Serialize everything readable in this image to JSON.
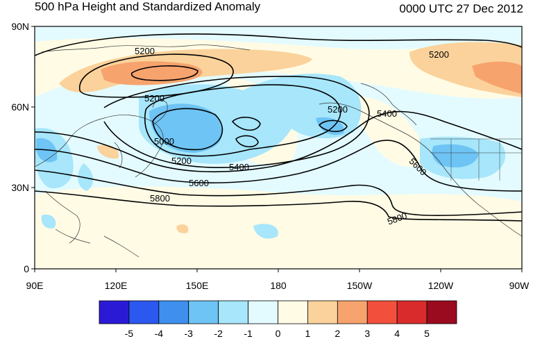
{
  "title": "500 hPa Height and Standardized Anomaly",
  "valid_time": "0000 UTC 27 Dec 2012",
  "lat_labels": [
    "90N",
    "60N",
    "30N",
    "0"
  ],
  "lon_labels": [
    "90E",
    "120E",
    "150E",
    "180",
    "150W",
    "120W",
    "90W"
  ],
  "contour_labels": [
    {
      "text": "5200"
    },
    {
      "text": "5200"
    },
    {
      "text": "5200"
    },
    {
      "text": "5200"
    },
    {
      "text": "5000"
    },
    {
      "text": "5200"
    },
    {
      "text": "5400"
    },
    {
      "text": "5400"
    },
    {
      "text": "5600"
    },
    {
      "text": "5600"
    },
    {
      "text": "5800"
    },
    {
      "text": "5800"
    }
  ],
  "colorbar": {
    "ticks": [
      "-5",
      "-4",
      "-3",
      "-2",
      "-1",
      "0",
      "1",
      "2",
      "3",
      "4",
      "5"
    ],
    "colors": [
      "#2a1ad6",
      "#2b58ee",
      "#3f8fee",
      "#6ec4f4",
      "#a7e6fb",
      "#e3fbff",
      "#fffbe5",
      "#fbd29b",
      "#f7a36e",
      "#f2503d",
      "#d92b2b",
      "#9a0b1f"
    ]
  },
  "colors": {
    "neg1": "#a7e6fb",
    "neg2": "#6ec4f4",
    "neg05": "#e3fbff",
    "pos05": "#fffbe5",
    "pos1": "#fbd29b",
    "pos2": "#f7a36e",
    "contour": "#000000",
    "coast": "#333333"
  }
}
